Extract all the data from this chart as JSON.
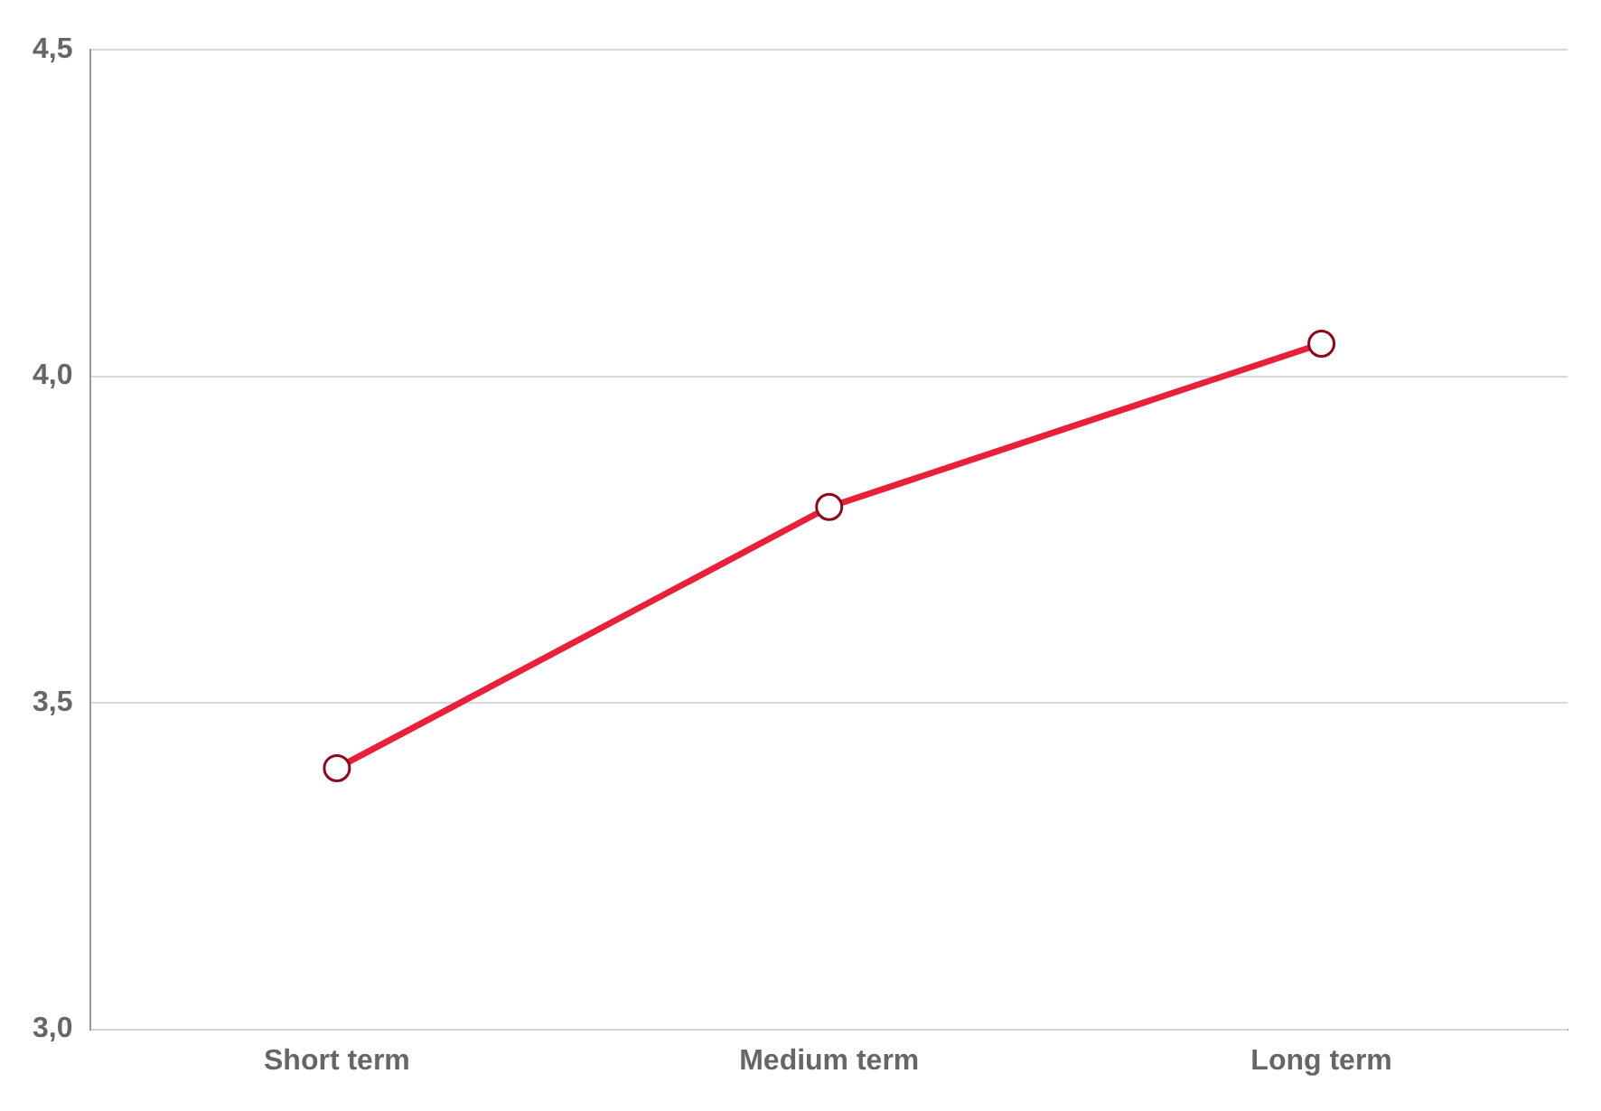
{
  "chart_data": {
    "type": "line",
    "categories": [
      "Short term",
      "Medium term",
      "Long term"
    ],
    "series": [
      {
        "color": "#e8203a",
        "values": [
          3.4,
          3.8,
          4.05
        ]
      }
    ],
    "ylim": [
      3.0,
      4.5
    ],
    "yticks": [
      {
        "value": 3.0,
        "label": "3,0"
      },
      {
        "value": 3.5,
        "label": "3,5"
      },
      {
        "value": 4.0,
        "label": "4,0"
      },
      {
        "value": 4.5,
        "label": "4,5"
      }
    ],
    "grid": "y",
    "legend": false,
    "marker": "circle",
    "line_style": "solid"
  }
}
